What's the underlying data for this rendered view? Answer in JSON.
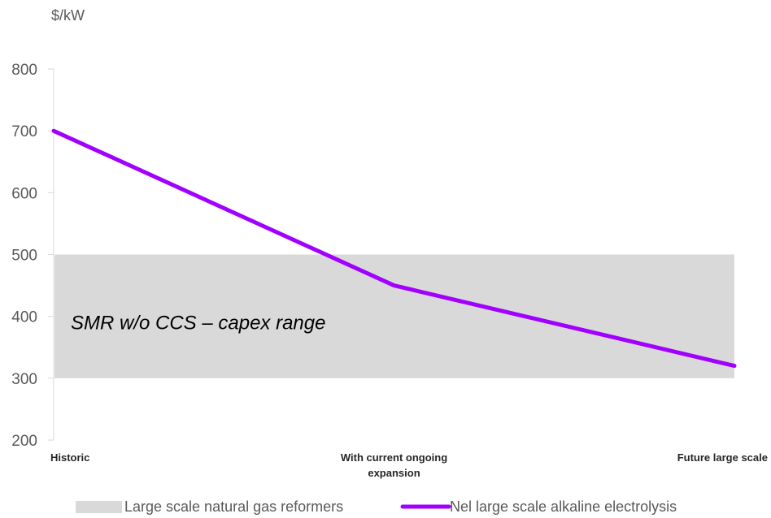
{
  "chart_data": {
    "type": "line",
    "unit_label": "$/kW",
    "categories": [
      "Historic",
      "With current ongoing expansion",
      "Future large scale"
    ],
    "series": [
      {
        "name": "Nel large scale alkaline electrolysis",
        "values": [
          700,
          450,
          320
        ],
        "color": "#a100ff"
      }
    ],
    "band": {
      "name": "Large scale natural gas reformers",
      "label": "SMR w/o CCS – capex range",
      "range": [
        300,
        500
      ],
      "color": "#d9d9d9"
    },
    "ylim": [
      200,
      800
    ],
    "yticks": [
      200,
      300,
      400,
      500,
      600,
      700,
      800
    ],
    "grid": false,
    "legend_position": "bottom"
  }
}
